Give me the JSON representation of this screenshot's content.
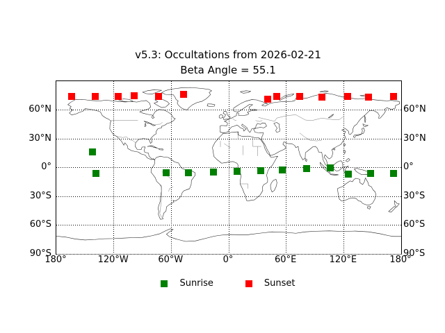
{
  "figure": {
    "title_line1": "v5.3: Occultations from 2026-02-21",
    "title_line2": "Beta Angle = 55.1"
  },
  "legend": {
    "sunrise_label": "Sunrise",
    "sunset_label": "Sunset"
  },
  "colors": {
    "sunrise": "#008000",
    "sunset": "#ff0000",
    "coastline": "#1a1a1a",
    "borders": "#555555",
    "grid": "#000000"
  },
  "chart_data": {
    "type": "scatter",
    "projection": "equirectangular-world-map",
    "title": "v5.3: Occultations from 2026-02-21",
    "subtitle": "Beta Angle = 55.1",
    "x_range": [
      -180,
      180
    ],
    "y_range": [
      -90,
      90
    ],
    "grid": "dotted, every 60 deg lon and 30 deg lat",
    "legend_position": "below plot, no frame",
    "x_ticks": [
      {
        "value": -180,
        "label": "180°"
      },
      {
        "value": -120,
        "label": "120°W"
      },
      {
        "value": -60,
        "label": "60°W"
      },
      {
        "value": 0,
        "label": "0°"
      },
      {
        "value": 60,
        "label": "60°E"
      },
      {
        "value": 120,
        "label": "120°E"
      },
      {
        "value": 180,
        "label": "180°"
      }
    ],
    "y_ticks": [
      {
        "value": 60,
        "label": "60°N"
      },
      {
        "value": 30,
        "label": "30°N"
      },
      {
        "value": 0,
        "label": "0°"
      },
      {
        "value": -30,
        "label": "30°S"
      },
      {
        "value": -60,
        "label": "60°S"
      },
      {
        "value": -90,
        "label": "90°S"
      }
    ],
    "series": [
      {
        "name": "Sunrise",
        "marker": "square",
        "color": "#008000",
        "points_lon_lat": [
          [
            -142.5,
            16.0
          ],
          [
            -138.6,
            -5.8
          ],
          [
            -65.4,
            -5.6
          ],
          [
            -41.9,
            -5.1
          ],
          [
            -16.3,
            -4.5
          ],
          [
            8.7,
            -4.0
          ],
          [
            33.1,
            -3.3
          ],
          [
            56.1,
            -2.2
          ],
          [
            81.0,
            -1.1
          ],
          [
            105.9,
            -0.7
          ],
          [
            124.8,
            -6.9
          ],
          [
            148.4,
            -6.4
          ],
          [
            171.7,
            -6.1
          ]
        ]
      },
      {
        "name": "Sunset",
        "marker": "square",
        "color": "#ff0000",
        "points_lon_lat": [
          [
            -163.8,
            74.3
          ],
          [
            -139.4,
            74.3
          ],
          [
            -115.4,
            74.3
          ],
          [
            -98.9,
            75.1
          ],
          [
            -73.5,
            73.9
          ],
          [
            -47.0,
            76.3
          ],
          [
            40.6,
            71.2
          ],
          [
            50.2,
            73.9
          ],
          [
            73.8,
            73.9
          ],
          [
            97.4,
            73.2
          ],
          [
            124.1,
            73.9
          ],
          [
            145.8,
            73.4
          ],
          [
            171.7,
            73.9
          ]
        ]
      }
    ]
  }
}
